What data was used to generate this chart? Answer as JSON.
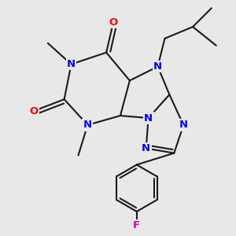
{
  "background_color": "#e8e8e8",
  "bond_color": "#1a1a1a",
  "N_color": "#0000ff",
  "O_color": "#ff0000",
  "F_color": "#cc00cc",
  "bond_width": 1.5,
  "figsize": [
    3.0,
    3.0
  ],
  "dpi": 100,
  "xlim": [
    0,
    10
  ],
  "ylim": [
    0,
    10
  ]
}
